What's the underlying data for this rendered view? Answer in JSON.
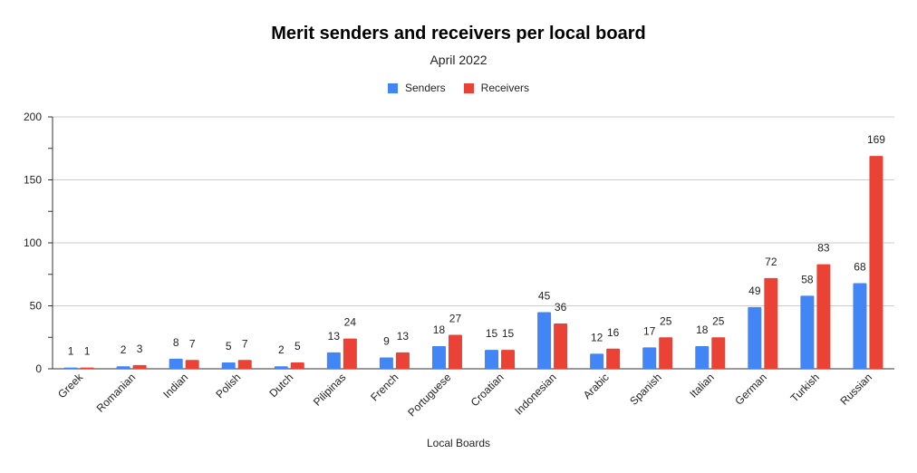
{
  "chart_data": {
    "type": "bar",
    "title": "Merit senders and receivers per local board",
    "subtitle": "April 2022",
    "xlabel": "Local Boards",
    "ylabel": "",
    "ylim": [
      0,
      200
    ],
    "yticks": [
      "0",
      "50",
      "100",
      "150",
      "200"
    ],
    "grid": true,
    "legend_position": "top",
    "categories": [
      "Greek",
      "Romanian",
      "Indian",
      "Polish",
      "Dutch",
      "Pilipinas",
      "French",
      "Portuguese",
      "Croatian",
      "Indonesian",
      "Arabic",
      "Spanish",
      "Italian",
      "German",
      "Turkish",
      "Russian"
    ],
    "series": [
      {
        "name": "Senders",
        "color": "#4285f4",
        "values": [
          1,
          2,
          8,
          5,
          2,
          13,
          9,
          18,
          15,
          45,
          12,
          17,
          18,
          49,
          58,
          68
        ]
      },
      {
        "name": "Receivers",
        "color": "#ea4335",
        "values": [
          1,
          3,
          7,
          7,
          5,
          24,
          13,
          27,
          15,
          36,
          16,
          25,
          25,
          72,
          83,
          169
        ]
      }
    ]
  }
}
